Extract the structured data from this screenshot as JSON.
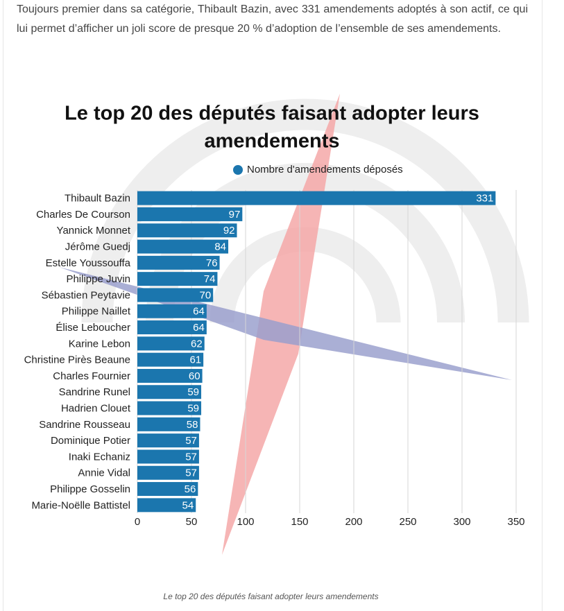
{
  "article": {
    "paragraph": "Toujours premier dans sa catégorie, Thibault Bazin, avec 331 amendements adoptés à son actif, ce qui lui permet d’afficher un joli score de presque 20 % d’adoption de l’ensemble de ses amendements."
  },
  "chart_data": {
    "type": "bar",
    "orientation": "horizontal",
    "title": "Le top 20 des députés faisant adopter leurs amendements",
    "categories": [
      "Thibault Bazin",
      "Charles De Courson",
      "Yannick Monnet",
      "Jérôme Guedj",
      "Estelle Youssouffa",
      "Philippe Juvin",
      "Sébastien Peytavie",
      "Philippe Naillet",
      "Élise Leboucher",
      "Karine Lebon",
      "Christine Pirès Beaune",
      "Charles Fournier",
      "Sandrine Runel",
      "Hadrien Clouet",
      "Sandrine Rousseau",
      "Dominique Potier",
      "Inaki Echaniz",
      "Annie Vidal",
      "Philippe Gosselin",
      "Marie-Noëlle Battistel"
    ],
    "series": [
      {
        "name": "Nombre d'amendements déposés",
        "color": "#1b76ae",
        "values": [
          331,
          97,
          92,
          84,
          76,
          74,
          70,
          64,
          64,
          62,
          61,
          60,
          59,
          59,
          58,
          57,
          57,
          57,
          56,
          54
        ]
      }
    ],
    "xlim": [
      0,
      350
    ],
    "xticks": [
      0,
      50,
      100,
      150,
      200,
      250,
      300,
      350
    ],
    "grid": true,
    "legend": "top"
  },
  "caption": "Le top 20 des députés faisant adopter leurs amendements"
}
